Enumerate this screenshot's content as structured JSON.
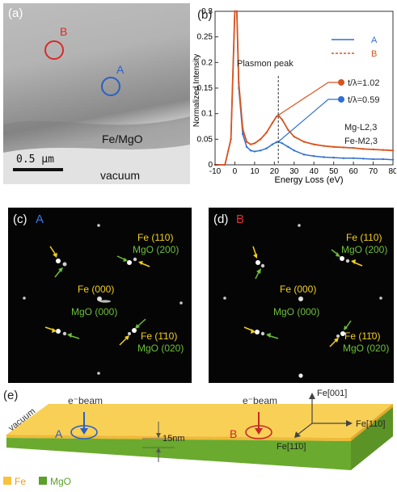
{
  "panel_a": {
    "label": "(a)",
    "spot_b": "B",
    "spot_a": "A",
    "film_label": "Fe/MgO",
    "scale_bar": "0.5 µm",
    "vacuum_label": "vacuum",
    "colors": {
      "A": "#2b5fc4",
      "B": "#d82a2a"
    }
  },
  "panel_b": {
    "label": "(b)",
    "plasmon_label": "Plasmon peak",
    "mg_label": "Mg-L2,3",
    "fe_label": "Fe-M2,3",
    "thick_b": "t/λ=1.02",
    "thick_a": "t/λ=0.59",
    "chart_data": {
      "type": "line",
      "xlabel": "Energy Loss (eV)",
      "ylabel": "Normalized Intensity",
      "xlim": [
        -10,
        80
      ],
      "ylim": [
        0,
        0.3
      ],
      "x_ticks": [
        -10,
        0,
        10,
        20,
        30,
        40,
        50,
        60,
        70,
        80
      ],
      "y_ticks": [
        0,
        0.05,
        0.1,
        0.15,
        0.2,
        0.25,
        0.3
      ],
      "legend": "top-right",
      "series": [
        {
          "name": "A",
          "color": "#2f6fd0",
          "x": [
            -10,
            -5,
            -2,
            0,
            1,
            2,
            4,
            6,
            8,
            10,
            13,
            16,
            19,
            21,
            22,
            24,
            27,
            30,
            35,
            40,
            45,
            50,
            55,
            60,
            65,
            70,
            75,
            80
          ],
          "y": [
            0.0,
            0.0,
            0.05,
            0.3,
            0.3,
            0.15,
            0.06,
            0.035,
            0.028,
            0.026,
            0.028,
            0.032,
            0.04,
            0.044,
            0.045,
            0.042,
            0.035,
            0.028,
            0.02,
            0.017,
            0.015,
            0.014,
            0.013,
            0.013,
            0.012,
            0.011,
            0.011,
            0.01
          ]
        },
        {
          "name": "B",
          "color": "#d9531e",
          "x": [
            -10,
            -5,
            -2,
            0,
            1,
            2,
            4,
            6,
            8,
            10,
            13,
            16,
            19,
            21,
            22,
            24,
            27,
            30,
            35,
            40,
            45,
            50,
            55,
            60,
            65,
            70,
            75,
            80
          ],
          "y": [
            0.0,
            0.0,
            0.05,
            0.3,
            0.3,
            0.16,
            0.07,
            0.045,
            0.04,
            0.042,
            0.05,
            0.063,
            0.082,
            0.094,
            0.097,
            0.088,
            0.068,
            0.055,
            0.045,
            0.04,
            0.037,
            0.035,
            0.034,
            0.033,
            0.031,
            0.03,
            0.029,
            0.028
          ]
        }
      ]
    }
  },
  "panel_c": {
    "label": "(c)",
    "spot": "A",
    "fe110": "Fe (110)",
    "mgo200": "MgO (200)",
    "fe000": "Fe (000)",
    "mgo000": "MgO (000)",
    "fe1bar10": "Fe (1̄10)",
    "mgo020": "MgO (020)"
  },
  "panel_d": {
    "label": "(d)",
    "spot": "B",
    "fe110": "Fe (110)",
    "mgo200": "MgO (200)",
    "fe000": "Fe (000)",
    "mgo000": "MgO (000)",
    "fe1bar10": "Fe (11̄0)",
    "mgo020": "MgO (020)"
  },
  "panel_e": {
    "label": "(e)",
    "beam_a": "e⁻beam",
    "beam_b": "e⁻beam",
    "spot_a": "A",
    "spot_b": "B",
    "vacuum": "vacuum",
    "thickness": "15nm",
    "axis_001": "Fe[001]",
    "axis_110": "Fe[110]",
    "axis_1bar10": "Fe[11̄0]",
    "legend_fe": "Fe",
    "legend_mgo": "MgO",
    "colors": {
      "fe": "#f5c945",
      "mgo": "#6aaa2e"
    }
  }
}
